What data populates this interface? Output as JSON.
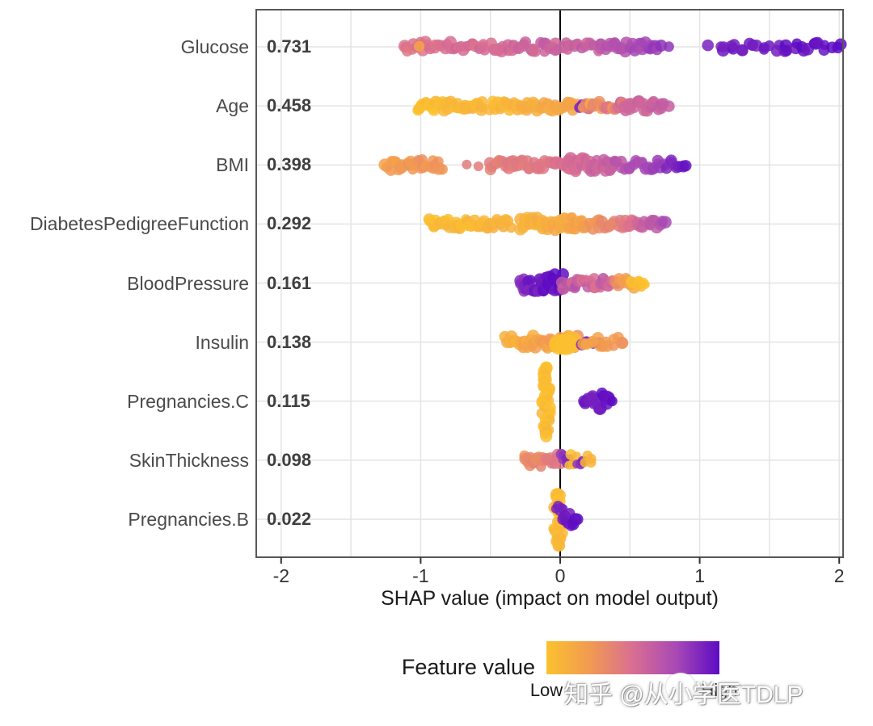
{
  "axis": {
    "title": "SHAP value (impact on model output)",
    "tick_labels": [
      "-2",
      "-1",
      "0",
      "1",
      "2"
    ]
  },
  "legend": {
    "title": "Feature value",
    "low_label": "Low",
    "high_label": "High"
  },
  "watermark": {
    "text": "知乎 @从小学医TDLP"
  },
  "colors": {
    "background": "#FFFFFF",
    "grid": "#E4E4E4",
    "panel_border": "#585858",
    "zero_line": "#000000",
    "feature_label": "#4A4A4A",
    "importance_label": "#3F3F3F",
    "tick_label": "#333333"
  },
  "chart_data": {
    "type": "beeswarm",
    "xlabel": "SHAP value (impact on model output)",
    "xlim": [
      -2.18,
      2.03
    ],
    "x_ticks": [
      -2,
      -1,
      0,
      1,
      2
    ],
    "x_minor_step": 0.5,
    "zero_line": 0,
    "grid": true,
    "colormap": {
      "title": "Feature value",
      "low": "Low",
      "high": "High",
      "stops": [
        [
          0,
          "#FBC22D"
        ],
        [
          0.25,
          "#F29A51"
        ],
        [
          0.5,
          "#D96E92"
        ],
        [
          0.75,
          "#A849B5"
        ],
        [
          1,
          "#5D0BC4"
        ]
      ]
    },
    "features": [
      {
        "name": "Glucose",
        "importance": "0.731",
        "clusters": [
          {
            "x0": -1.12,
            "x1": 0.3,
            "n": 80,
            "v0": 0.46,
            "v1": 0.62,
            "s": 6,
            "r": 7,
            "vn": 0.05
          },
          {
            "x0": -1.01,
            "x1": -1.01,
            "n": 1,
            "v0": 0.22,
            "v1": 0.22,
            "s": 2,
            "r": 6
          },
          {
            "x0": 0.3,
            "x1": 0.7,
            "n": 28,
            "v0": 0.66,
            "v1": 0.8,
            "s": 6,
            "r": 7
          },
          {
            "x0": 0.73,
            "x1": 0.8,
            "n": 2,
            "v0": 0.8,
            "v1": 0.82,
            "s": 2,
            "r": 7
          },
          {
            "x0": 1.05,
            "x1": 1.12,
            "n": 2,
            "v0": 0.9,
            "v1": 0.9,
            "s": 2,
            "r": 7
          },
          {
            "x0": 1.15,
            "x1": 2.0,
            "n": 32,
            "v0": 0.92,
            "v1": 1.0,
            "s": 5,
            "r": 7
          }
        ]
      },
      {
        "name": "Age",
        "importance": "0.458",
        "clusters": [
          {
            "x0": -1.03,
            "x1": -0.55,
            "n": 40,
            "v0": 0.02,
            "v1": 0.08,
            "s": 6,
            "r": 7
          },
          {
            "x0": -0.5,
            "x1": 0.12,
            "n": 50,
            "v0": 0.05,
            "v1": 0.2,
            "s": 6,
            "r": 7
          },
          {
            "x0": 0.14,
            "x1": 0.22,
            "n": 6,
            "v0": 0.93,
            "v1": 0.97,
            "s": 4,
            "r": 6
          },
          {
            "x0": 0.16,
            "x1": 0.48,
            "n": 24,
            "v0": 0.2,
            "v1": 0.5,
            "s": 6,
            "r": 7,
            "vn": 0.15
          },
          {
            "x0": 0.45,
            "x1": 0.77,
            "n": 22,
            "v0": 0.55,
            "v1": 0.62,
            "s": 6,
            "r": 7
          }
        ]
      },
      {
        "name": "BMI",
        "importance": "0.398",
        "clusters": [
          {
            "x0": -1.25,
            "x1": -0.85,
            "n": 28,
            "v0": 0.22,
            "v1": 0.3,
            "s": 7,
            "r": 7
          },
          {
            "x0": -0.67,
            "x1": -0.59,
            "n": 2,
            "v0": 0.4,
            "v1": 0.42,
            "s": 2,
            "r": 6
          },
          {
            "x0": -0.51,
            "x1": 0.1,
            "n": 45,
            "v0": 0.4,
            "v1": 0.5,
            "s": 6,
            "r": 7
          },
          {
            "x0": 0.05,
            "x1": 0.38,
            "n": 35,
            "v0": 0.5,
            "v1": 0.6,
            "s": 9,
            "r": 7
          },
          {
            "x0": 0.4,
            "x1": 0.88,
            "n": 28,
            "v0": 0.65,
            "v1": 0.92,
            "s": 6,
            "r": 7
          },
          {
            "x0": 0.9,
            "x1": 0.9,
            "n": 1,
            "v0": 0.98,
            "v1": 0.98,
            "s": 1,
            "r": 7
          }
        ]
      },
      {
        "name": "DiabetesPedigreeFunction",
        "importance": "0.292",
        "clusters": [
          {
            "x0": -0.94,
            "x1": -0.36,
            "n": 42,
            "v0": 0.03,
            "v1": 0.1,
            "s": 6,
            "r": 7
          },
          {
            "x0": -0.29,
            "x1": 0.18,
            "n": 48,
            "v0": 0.08,
            "v1": 0.2,
            "s": 8,
            "r": 7
          },
          {
            "x0": 0.18,
            "x1": 0.5,
            "n": 22,
            "v0": 0.25,
            "v1": 0.45,
            "s": 6,
            "r": 7
          },
          {
            "x0": 0.5,
            "x1": 0.74,
            "n": 16,
            "v0": 0.5,
            "v1": 0.72,
            "s": 5,
            "r": 7
          }
        ]
      },
      {
        "name": "BloodPressure",
        "importance": "0.161",
        "clusters": [
          {
            "x0": -0.29,
            "x1": 0.02,
            "n": 40,
            "v0": 0.88,
            "v1": 1.0,
            "s": 11,
            "r": 7,
            "vn": 0.06
          },
          {
            "x0": 0.02,
            "x1": 0.4,
            "n": 32,
            "v0": 0.62,
            "v1": 0.55,
            "s": 7,
            "r": 7,
            "vn": 0.1
          },
          {
            "x0": 0.4,
            "x1": 0.52,
            "n": 10,
            "v0": 0.3,
            "v1": 0.15,
            "s": 6,
            "r": 7
          },
          {
            "x0": 0.5,
            "x1": 0.62,
            "n": 9,
            "v0": 0.05,
            "v1": 0.02,
            "s": 5,
            "r": 6
          }
        ]
      },
      {
        "name": "Insulin",
        "importance": "0.138",
        "clusters": [
          {
            "x0": -0.39,
            "x1": 0.12,
            "n": 45,
            "v0": 0.12,
            "v1": 0.25,
            "s": 8,
            "r": 7,
            "vn": 0.07
          },
          {
            "x0": 0.0,
            "x1": 0.08,
            "n": 4,
            "v0": 0.02,
            "v1": 0.04,
            "s": 3,
            "r": 13
          },
          {
            "x0": 0.15,
            "x1": 0.23,
            "n": 4,
            "v0": 0.88,
            "v1": 0.92,
            "s": 4,
            "r": 7
          },
          {
            "x0": 0.28,
            "x1": 0.28,
            "n": 1,
            "v0": 0.85,
            "v1": 0.85,
            "s": 2,
            "r": 7
          },
          {
            "x0": 0.18,
            "x1": 0.45,
            "n": 14,
            "v0": 0.18,
            "v1": 0.28,
            "s": 6,
            "r": 7
          }
        ]
      },
      {
        "name": "Pregnancies.C",
        "importance": "0.115",
        "clusters": [
          {
            "type": "violin",
            "cx": -0.1,
            "jx": 0.035,
            "n": 40,
            "v0": 0.02,
            "v1": 0.05,
            "s": 42,
            "r": 7
          },
          {
            "type": "lens",
            "x0": 0.17,
            "x1": 0.37,
            "n": 22,
            "v0": 0.93,
            "v1": 0.98,
            "s": 11,
            "r": 7
          }
        ]
      },
      {
        "name": "SkinThickness",
        "importance": "0.098",
        "clusters": [
          {
            "x0": -0.26,
            "x1": 0.0,
            "n": 28,
            "v0": 0.3,
            "v1": 0.45,
            "s": 8,
            "r": 7
          },
          {
            "x0": 0.0,
            "x1": 0.06,
            "n": 6,
            "v0": 0.8,
            "v1": 0.88,
            "s": 8,
            "r": 6
          },
          {
            "x0": 0.07,
            "x1": 0.12,
            "n": 4,
            "v0": 0.03,
            "v1": 0.06,
            "s": 7,
            "r": 6
          },
          {
            "x0": 0.12,
            "x1": 0.17,
            "n": 4,
            "v0": 0.82,
            "v1": 0.9,
            "s": 7,
            "r": 6
          },
          {
            "x0": 0.17,
            "x1": 0.23,
            "n": 4,
            "v0": 0.04,
            "v1": 0.08,
            "s": 6,
            "r": 6
          }
        ]
      },
      {
        "name": "Pregnancies.B",
        "importance": "0.022",
        "clusters": [
          {
            "type": "violin",
            "cx": -0.015,
            "jx": 0.035,
            "n": 32,
            "v0": 0.02,
            "v1": 0.05,
            "s": 33,
            "r": 7
          },
          {
            "type": "lens",
            "x0": -0.03,
            "x1": 0.02,
            "n": 5,
            "v0": 0.93,
            "v1": 0.95,
            "s": 6,
            "dy": -13,
            "r": 6
          },
          {
            "type": "lens",
            "x0": 0.02,
            "x1": 0.12,
            "n": 10,
            "v0": 0.93,
            "v1": 0.97,
            "s": 9,
            "r": 7
          }
        ]
      }
    ]
  }
}
